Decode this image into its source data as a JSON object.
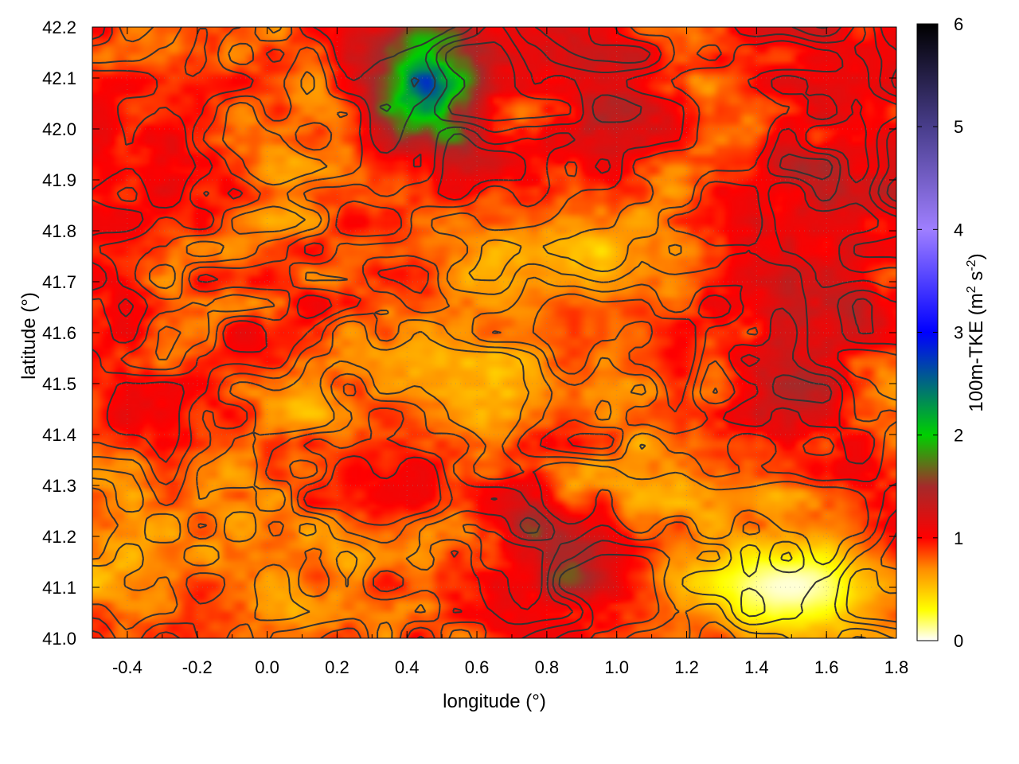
{
  "chart_data": {
    "type": "heatmap",
    "title": "",
    "xlabel": "longitude (°)",
    "ylabel": "latitude (°)",
    "colorbar_label": "100m-TKE (m",
    "colorbar_label_sup1": "2",
    "colorbar_label_mid": " s",
    "colorbar_label_sup2": "-2",
    "colorbar_label_end": ")",
    "xlim": [
      -0.5,
      1.8
    ],
    "ylim": [
      41.0,
      42.2
    ],
    "x_ticks": [
      -0.4,
      -0.2,
      0.0,
      0.2,
      0.4,
      0.6,
      0.8,
      1.0,
      1.2,
      1.4,
      1.6,
      1.8
    ],
    "x_tick_labels": [
      "-0.4",
      "-0.2",
      "0.0",
      "0.2",
      "0.4",
      "0.6",
      "0.8",
      "1.0",
      "1.2",
      "1.4",
      "1.6",
      "1.8"
    ],
    "y_ticks": [
      41.0,
      41.1,
      41.2,
      41.3,
      41.4,
      41.5,
      41.6,
      41.7,
      41.8,
      41.9,
      42.0,
      42.1,
      42.2
    ],
    "y_tick_labels": [
      "41.0",
      "41.1",
      "41.2",
      "41.3",
      "41.4",
      "41.5",
      "41.6",
      "41.7",
      "41.8",
      "41.9",
      "42.0",
      "42.1",
      "42.2"
    ],
    "clim": [
      0,
      6
    ],
    "colorbar_ticks": [
      0,
      1,
      2,
      3,
      4,
      5,
      6
    ],
    "colorbar_tick_labels": [
      "0",
      "1",
      "2",
      "3",
      "4",
      "5",
      "6"
    ],
    "colormap": [
      {
        "v": 0.0,
        "c": "#ffffff"
      },
      {
        "v": 0.3,
        "c": "#ffff00"
      },
      {
        "v": 0.7,
        "c": "#ff8c00"
      },
      {
        "v": 1.0,
        "c": "#ff0000"
      },
      {
        "v": 1.5,
        "c": "#a52a2a"
      },
      {
        "v": 2.0,
        "c": "#00d000"
      },
      {
        "v": 3.0,
        "c": "#0000ff"
      },
      {
        "v": 4.0,
        "c": "#9f7fff"
      },
      {
        "v": 5.0,
        "c": "#483d8b"
      },
      {
        "v": 6.0,
        "c": "#000000"
      }
    ],
    "grid": true,
    "overlay": "terrain elevation contours (dark gray lines)",
    "regions": [
      {
        "lon": [
          -0.5,
          0.35
        ],
        "lat": [
          41.0,
          42.0
        ],
        "approx_value": 0.8
      },
      {
        "lon": [
          0.3,
          0.7
        ],
        "lat": [
          41.95,
          42.2
        ],
        "approx_value": 2.2
      },
      {
        "lon": [
          0.7,
          1.3
        ],
        "lat": [
          41.85,
          42.2
        ],
        "approx_value": 1.2
      },
      {
        "lon": [
          1.3,
          1.8
        ],
        "lat": [
          41.3,
          42.2
        ],
        "approx_value": 1.3
      },
      {
        "lon": [
          0.4,
          1.2
        ],
        "lat": [
          41.4,
          41.9
        ],
        "approx_value": 0.6
      },
      {
        "lon": [
          1.2,
          1.8
        ],
        "lat": [
          41.0,
          41.2
        ],
        "approx_value": 0.05
      },
      {
        "lon": [
          0.6,
          0.95
        ],
        "lat": [
          41.0,
          41.35
        ],
        "approx_value": 1.4
      }
    ]
  }
}
